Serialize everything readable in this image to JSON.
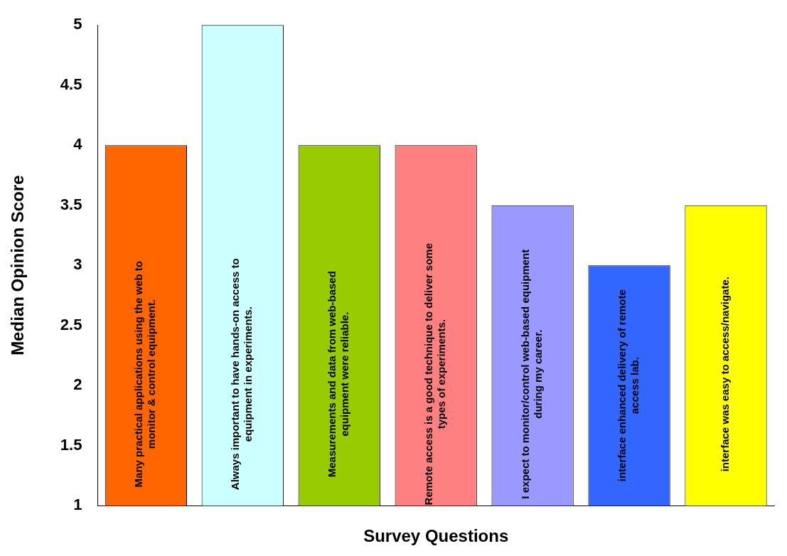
{
  "chart_data": {
    "type": "bar",
    "xlabel": "Survey Questions",
    "ylabel": "Median Opinion Score",
    "categories": [
      "Many practical applications using the web to monitor & control equipment.",
      "Always important to have hands-on access to equipment in experiments.",
      "Measurements and data from web-based equipment were reliable.",
      "Remote access is a good technique to deliver some types of experiments.",
      "I expect to monitor/control web-based equipment during my career.",
      "interface enhanced delivery of remote access lab.",
      "interface was easy to access/navigate."
    ],
    "values": [
      4,
      5,
      4,
      4,
      3.5,
      3,
      3.5
    ],
    "colors": [
      "#ff6600",
      "#ccffff",
      "#99cc00",
      "#ff8080",
      "#9999ff",
      "#3366ff",
      "#ffff00"
    ],
    "ylim": [
      1,
      5
    ],
    "yticks": [
      1,
      1.5,
      2,
      2.5,
      3,
      3.5,
      4,
      4.5,
      5
    ],
    "grid": false,
    "legend": false,
    "tick_labels": "y"
  }
}
